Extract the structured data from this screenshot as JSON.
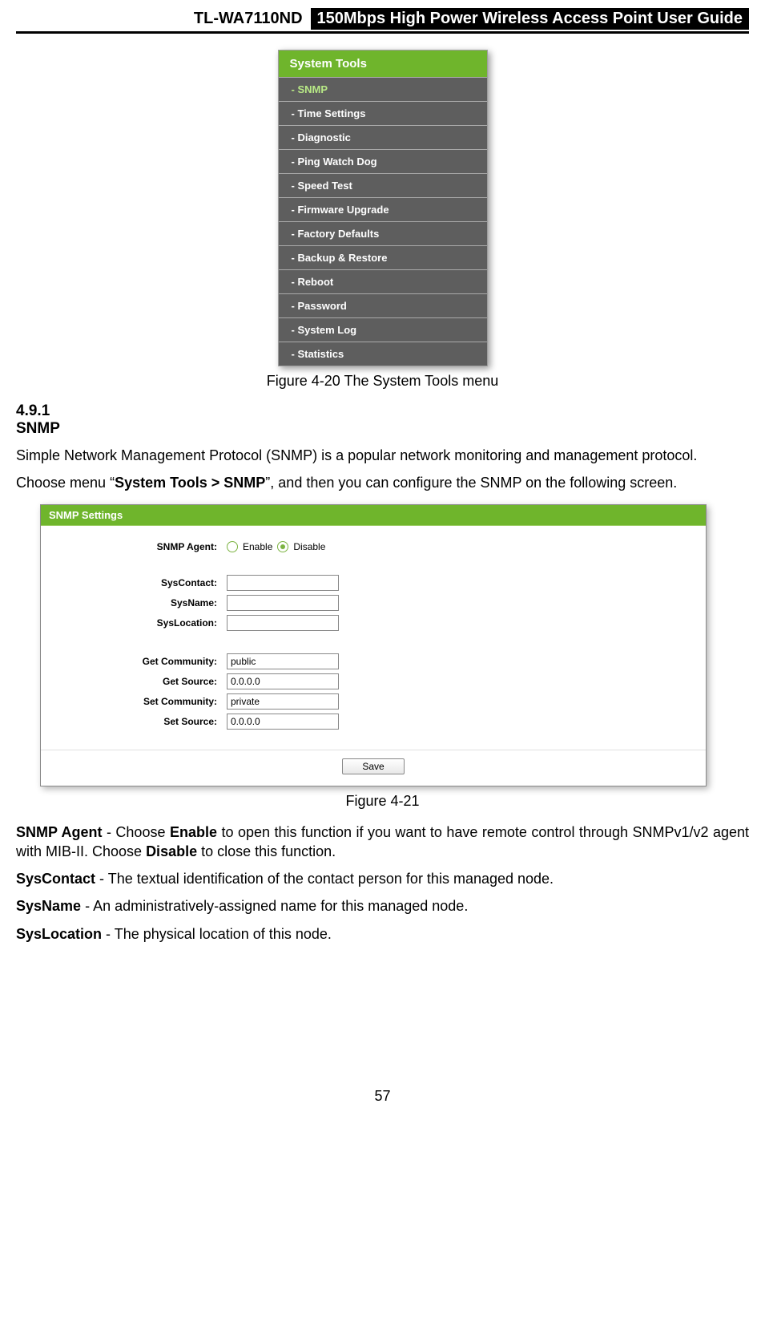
{
  "header": {
    "model": "TL-WA7110ND",
    "title": "150Mbps High Power Wireless Access Point User Guide"
  },
  "menu": {
    "header_bg": "#6fb52c",
    "header_text_color": "#ffffff",
    "item_bg": "#5e5e5e",
    "item_text_color": "#ffffff",
    "selected_text_color": "#b8e986",
    "header_label": "System Tools",
    "items": [
      {
        "label": "- SNMP",
        "selected": true
      },
      {
        "label": "- Time Settings",
        "selected": false
      },
      {
        "label": "- Diagnostic",
        "selected": false
      },
      {
        "label": "- Ping Watch Dog",
        "selected": false
      },
      {
        "label": "- Speed Test",
        "selected": false
      },
      {
        "label": "- Firmware Upgrade",
        "selected": false
      },
      {
        "label": "- Factory Defaults",
        "selected": false
      },
      {
        "label": "- Backup & Restore",
        "selected": false
      },
      {
        "label": "- Reboot",
        "selected": false
      },
      {
        "label": "- Password",
        "selected": false
      },
      {
        "label": "- System Log",
        "selected": false
      },
      {
        "label": "- Statistics",
        "selected": false
      }
    ]
  },
  "figure1_caption": "Figure 4-20 The System Tools menu",
  "section": {
    "number": "4.9.1",
    "title": "SNMP"
  },
  "para1": "Simple Network Management Protocol (SNMP) is a popular network monitoring and management protocol.",
  "para2_a": "Choose menu “",
  "para2_b": "System Tools > SNMP",
  "para2_c": "”, and then you can configure the SNMP on the following screen.",
  "settings": {
    "header_bg": "#6fb52c",
    "header_label": "SNMP Settings",
    "snmp_agent_label": "SNMP Agent:",
    "enable_label": "Enable",
    "disable_label": "Disable",
    "disable_checked": true,
    "syscontact_label": "SysContact:",
    "syscontact_value": "",
    "sysname_label": "SysName:",
    "sysname_value": "",
    "syslocation_label": "SysLocation:",
    "syslocation_value": "",
    "get_community_label": "Get Community:",
    "get_community_value": "public",
    "get_source_label": "Get Source:",
    "get_source_value": "0.0.0.0",
    "set_community_label": "Set Community:",
    "set_community_value": "private",
    "set_source_label": "Set Source:",
    "set_source_value": "0.0.0.0",
    "save_label": "Save"
  },
  "figure2_caption": "Figure 4-21",
  "defs": {
    "snmp_agent_term": "SNMP Agent",
    "snmp_agent_a": " - Choose ",
    "snmp_agent_b": "Enable",
    "snmp_agent_c": " to open this function if you want to have remote control through SNMPv1/v2 agent with MIB-II. Choose ",
    "snmp_agent_d": "Disable",
    "snmp_agent_e": " to close this function.",
    "syscontact_term": "SysContact",
    "syscontact_text": " - The textual identification of the contact person for this managed node.",
    "sysname_term": "SysName",
    "sysname_text": " - An administratively-assigned name for this managed node.",
    "syslocation_term": "SysLocation",
    "syslocation_text": " - The physical location of this node."
  },
  "page_number": "57"
}
